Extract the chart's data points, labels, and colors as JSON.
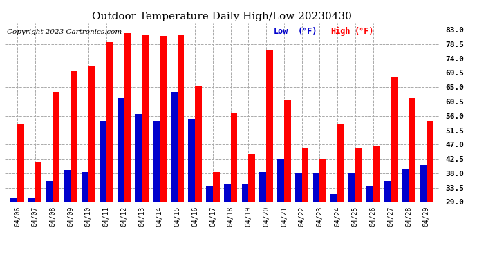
{
  "title": "Outdoor Temperature Daily High/Low 20230430",
  "copyright": "Copyright 2023 Cartronics.com",
  "legend_low_label": "Low",
  "legend_high_label": "High",
  "legend_unit": "(°F)",
  "ylim": [
    29.0,
    85.0
  ],
  "yticks": [
    29.0,
    33.5,
    38.0,
    42.5,
    47.0,
    51.5,
    56.0,
    60.5,
    65.0,
    69.5,
    74.0,
    78.5,
    83.0
  ],
  "dates": [
    "04/06",
    "04/07",
    "04/08",
    "04/09",
    "04/10",
    "04/11",
    "04/12",
    "04/13",
    "04/14",
    "04/15",
    "04/16",
    "04/17",
    "04/18",
    "04/19",
    "04/20",
    "04/21",
    "04/22",
    "04/23",
    "04/24",
    "04/25",
    "04/26",
    "04/27",
    "04/28",
    "04/29"
  ],
  "high": [
    53.5,
    41.5,
    63.5,
    70.0,
    71.5,
    79.0,
    82.0,
    81.5,
    81.0,
    81.5,
    65.5,
    38.5,
    57.0,
    44.0,
    76.5,
    61.0,
    46.0,
    42.5,
    53.5,
    46.0,
    46.5,
    68.0,
    61.5,
    54.5
  ],
  "low": [
    30.5,
    30.5,
    35.5,
    39.0,
    38.5,
    54.5,
    61.5,
    56.5,
    54.5,
    63.5,
    55.0,
    34.0,
    34.5,
    34.5,
    38.5,
    42.5,
    38.0,
    38.0,
    31.5,
    38.0,
    34.0,
    35.5,
    39.5,
    40.5
  ],
  "high_color": "#ff0000",
  "low_color": "#0000cc",
  "bg_color": "#ffffff",
  "grid_color": "#aaaaaa",
  "title_fontsize": 11,
  "copyright_fontsize": 7.5,
  "legend_fontsize": 8.5,
  "ytick_fontsize": 8,
  "xtick_fontsize": 7,
  "bar_width": 0.38
}
